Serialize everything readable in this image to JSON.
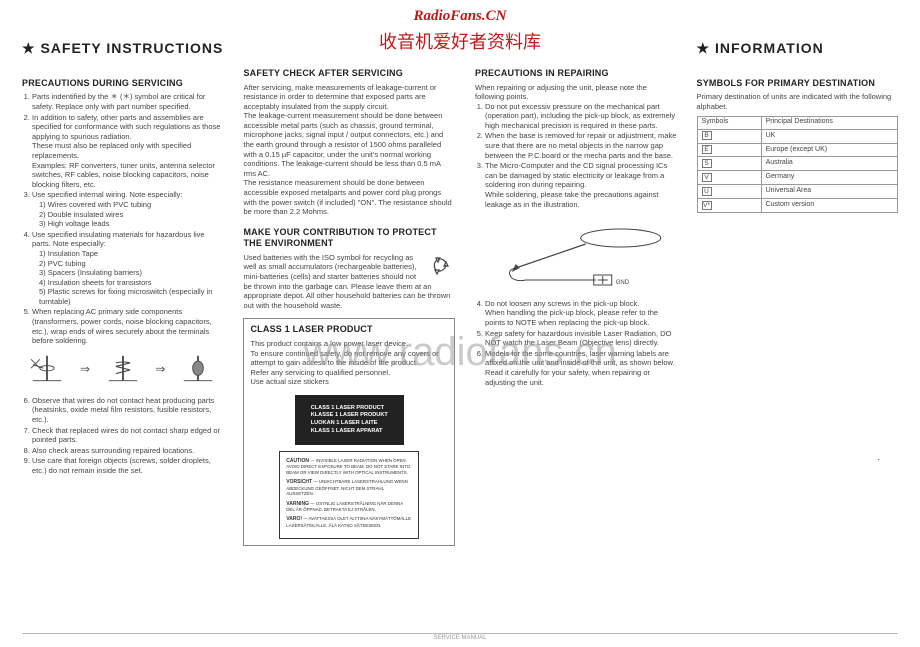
{
  "watermark": {
    "top1": "RadioFans.CN",
    "top2": "收音机爱好者资料库",
    "center": "www.radiofans.cn"
  },
  "left": {
    "header_star": "★",
    "header": "SAFETY  INSTRUCTIONS",
    "h1": "PRECAUTIONS DURING SERVICING",
    "p1": "Parts indentified by the ＊ (＊) symbol are critical for safety. Replace only with part number specified.",
    "p2": "In addition to safety, other parts and assemblies are specified for conformance with such regulations as those applying to spurious radiation.",
    "p2b": "These must also be replaced only with specified replacements.",
    "p2c": "Examples: RF converters, tuner units, antenna selector switches, RF cables, noise blocking capacitors, noise blocking filters, etc.",
    "p3": "Use specified internal wiring. Note especially:",
    "p3a": "1) Wires covered with PVC tubing",
    "p3b": "2) Double insulated wires",
    "p3c": "3) High voltage leads",
    "p4": "Use specified insulating materials for hazardous live parts. Note especially:",
    "p4a": "1) Insulation Tape",
    "p4b": "2) PVC tubing",
    "p4c": "3) Spacers (Insulating barriers)",
    "p4d": "4) Insulation sheets for transistors",
    "p4e": "5) Plastic screws for fixing microswitch (especially in turntable)",
    "p5": "When replacing AC primary side components (transformers, power cords, noise blocking capacitors, etc.), wrap ends of wires securely about the terminals before soldering.",
    "p6": "Observe that wires do not contact heat producing parts (heatsinks, oxide metal film resistors, fusible resistors, etc.).",
    "p7": "Check that replaced wires do not contact sharp edged or pointed parts.",
    "p8": "Also check areas surrounding repaired locations.",
    "p9": "Use care that foreign objects (screws, solder droplets, etc.) do not remain inside the set."
  },
  "mid": {
    "h1": "SAFETY CHECK AFTER SERVICING",
    "p1": "After servicing, make measurements of leakage-current or resistance in order to determine that exposed parts are acceptably insulated from the supply circuit.",
    "p2": "The leakage-current measurement should be done between accessible metal parts (such as chassis, ground terminal, microphone jacks, signal input / output connectors, etc.) and the earth ground through a resistor of 1500 ohms paralleled with a 0.15 µF capacitor, under the unit's normal working conditions. The leakage-current should be less than 0.5 mA rms AC.",
    "p3": "The resistance measurement should be done between accessible exposed metalparts and power cord plug prongs with the power switch (if included) \"ON\". The resistance should be more than 2.2 Mohms.",
    "h2": "MAKE YOUR CONTRIBUTION TO PROTECT THE ENVIRONMENT",
    "env": "Used batteries with the ISO symbol for recycling as well as small accumulators (rechargeable batteries), mini-batteries (cells) and starter batteries should not be thrown into the garbage can. Please leave them at an appropriate depot. All other household batteries can be thrown out with the household waste.",
    "lh": "CLASS 1 LASER PRODUCT",
    "l1": "This product contains a low power laser device.",
    "l2": "To ensure continued safety, do not remove any covers or attempt to gain access to the inside of the product.",
    "l3": "Refer any servicing to qualified personnel.",
    "l4": "Use actual size stickers",
    "black1": "CLASS 1  LASER PRODUCT",
    "black2": "KLASSE 1  LASER PRODUKT",
    "black3": "LUOKAN 1  LASER LAITE",
    "black4": "KLASS 1  LASER APPARAT",
    "caution_h": "CAUTION",
    "caution_t1": "— INVISIBLE LASER RADIATION WHEN OPEN. AVOID DIRECT EXPOSURE TO BEAM. DO NOT STARE INTO BEAM OR VIEW DIRECTLY WITH OPTICAL INSTRUMENTS.",
    "caution_h2": "VORSICHT",
    "caution_t2": "— UNSICHTBARE LASERSTRAHLUNG WENN ABDECKUNG GEÖFFNET. NICHT DEM STRAHL AUSSETZEN.",
    "caution_h3": "VARNING",
    "caution_t3": "— OSYNLIG LASERSTRÅLNING NÄR DENNA DEL ÄR ÖPPNAD. BETRAKTA EJ STRÅLEN.",
    "caution_h4": "VARO!",
    "caution_t4": "— AVATTAESSA OLET ALTTIINA NÄKYMÄTTÖMÄLLE LASERSÄTEILYLLE. ÄLÄ KATSO SÄTEESEEN."
  },
  "right1": {
    "h1": "PRECAUTIONS IN REPAIRING",
    "intro": "When repairing or adjusing the unit, please note the following points.",
    "p1": "Do not put excessiv pressure on the mechanical part (operation part), including the pick-up block, as extremely high mechanical precision is required in these parts.",
    "p2": "When the base is removed for repair or adjustment, make sure that there are no metal objects in the narrow gap between the P.C.board or the mecha parts and the base.",
    "p3": "The Micro-Computer and the CD signal processing ICs can be damaged by static electricity or leakage from a soldering iron during repairing.",
    "p3b": "While soldering, please take the precautions against leakage as in the illustration.",
    "p4": "Do not loosen any screws in the pick-up block.",
    "p4b": "When handling the pick-up block, please refer to the points to NOTE when replacing the pick-up block.",
    "p5": "Keep safety for hazardous invisible Laser Radiation, DO NOT watch the Laser Beam (Objective lens) directly.",
    "p6": "Models for the some countries, laser warning labels are affixed on the unit and inside of the unit, as shown below.",
    "p6b": "Read it carefully for your safety, when repairing or adjusting the unit."
  },
  "right2": {
    "header_star": "★",
    "header": "INFORMATION",
    "h1": "SYMBOLS FOR PRIMARY DESTINATION",
    "intro": "Primary destination of units are indicated with the following alphabet.",
    "th1": "Symbols",
    "th2": "Principal  Destinations",
    "rows": [
      {
        "s": "B",
        "d": "UK"
      },
      {
        "s": "E",
        "d": "Europe (except UK)"
      },
      {
        "s": "S",
        "d": "Australia"
      },
      {
        "s": "V",
        "d": "Germany"
      },
      {
        "s": "U",
        "d": "Universal  Area"
      },
      {
        "s": "V*",
        "d": "Custom  version"
      }
    ]
  },
  "footer": "SERVICE MANUAL"
}
